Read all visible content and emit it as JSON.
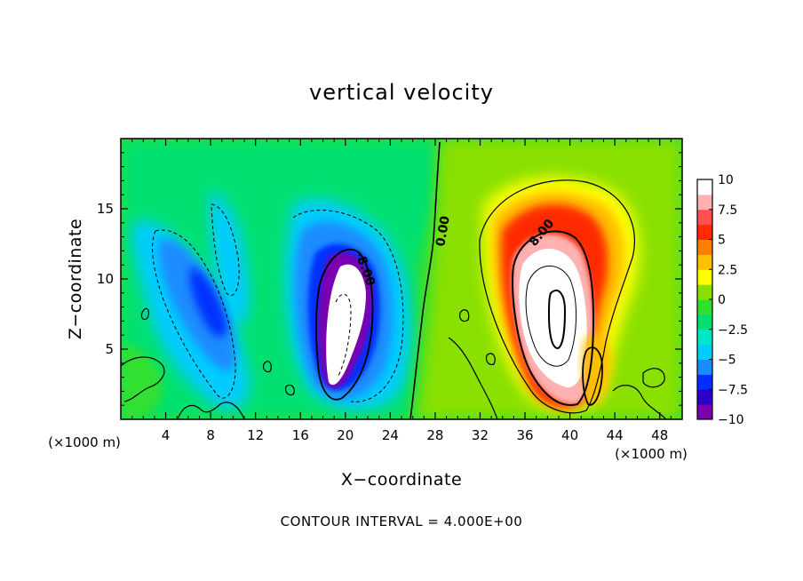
{
  "chart_data": {
    "type": "heatmap",
    "title": "vertical velocity",
    "xlabel": "X−coordinate",
    "ylabel": "Z−coordinate",
    "x_units": "(×1000 m)",
    "x_units_right": "(×1000 m)",
    "xlim": [
      0,
      50
    ],
    "ylim": [
      0,
      20
    ],
    "x_ticks": [
      "4",
      "8",
      "12",
      "16",
      "20",
      "24",
      "28",
      "32",
      "36",
      "40",
      "44",
      "48"
    ],
    "x_tick_values": [
      4,
      8,
      12,
      16,
      20,
      24,
      28,
      32,
      36,
      40,
      44,
      48
    ],
    "y_ticks": [
      "5",
      "10",
      "15"
    ],
    "y_tick_values": [
      5,
      10,
      15
    ],
    "colorbar": {
      "min": -10,
      "max": 10,
      "ticks": [
        "10",
        "7.5",
        "5",
        "2.5",
        "0",
        "−2.5",
        "−5",
        "−7.5",
        "−10"
      ],
      "tick_values": [
        10,
        7.5,
        5,
        2.5,
        0,
        -2.5,
        -5,
        -7.5,
        -10
      ],
      "colors": [
        "#7a00b0",
        "#2d00c8",
        "#0030ff",
        "#1a8cff",
        "#00ccff",
        "#00e6c8",
        "#00e070",
        "#30e030",
        "#8ae000",
        "#ffff00",
        "#ffc000",
        "#ff8000",
        "#ff2a00",
        "#ff5050",
        "#ffb0b0",
        "#ffffff"
      ]
    },
    "features": [
      {
        "kind": "downdraft",
        "x": 9,
        "z": 8,
        "peak": -8
      },
      {
        "kind": "downdraft",
        "x": 19,
        "z": 7,
        "peak": -10
      },
      {
        "kind": "updraft",
        "x": 38.5,
        "z": 8,
        "peak": 10
      }
    ],
    "contour_labels": [
      "-8.00",
      "0.00",
      "8.00"
    ],
    "contour_interval": "CONTOUR INTERVAL = 4.000E+00"
  }
}
